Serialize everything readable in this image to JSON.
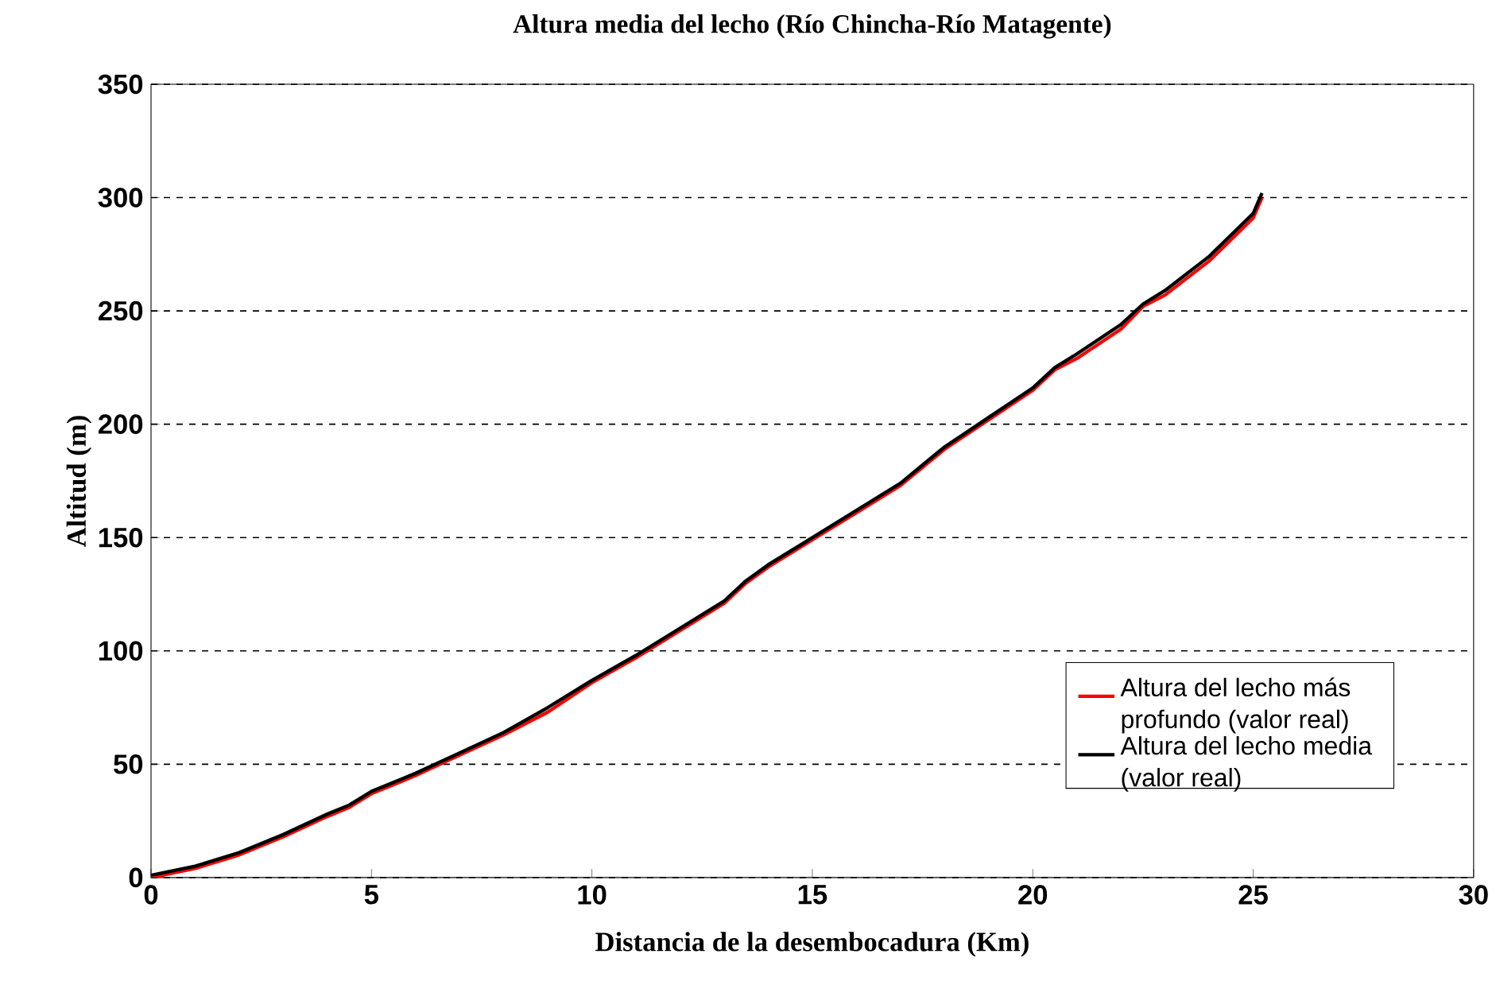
{
  "chart_data": {
    "type": "line",
    "title": "Altura media del lecho (Río Chincha-Río Matagente)",
    "xlabel": "Distancia de la desembocadura (Km)",
    "ylabel": "Altitud (m)",
    "xlim": [
      0,
      30
    ],
    "xticks": [
      0,
      5,
      10,
      15,
      20,
      25,
      30
    ],
    "ylim": [
      0,
      350
    ],
    "yticks": [
      0,
      50,
      100,
      150,
      200,
      250,
      300,
      350
    ],
    "grid": "y",
    "legend": "right",
    "marker": "none",
    "line_style": "solid",
    "x": [
      0,
      1,
      2,
      3,
      4,
      4.5,
      5,
      6,
      7,
      8,
      9,
      10,
      11,
      12,
      13,
      13.5,
      14,
      15,
      16,
      17,
      17.5,
      18,
      19,
      20,
      20.5,
      21,
      22,
      22.5,
      23,
      24,
      25,
      25.2
    ],
    "series": [
      {
        "name": "Altura del lecho más profundo (valor real)",
        "color": "#ff0000",
        "values": [
          0,
          4,
          10,
          18,
          27,
          31,
          37,
          45,
          54,
          63,
          73,
          86,
          97,
          109,
          121,
          130,
          137,
          149,
          161,
          173,
          181,
          189,
          202,
          215,
          224,
          229,
          242,
          252,
          257,
          272,
          291,
          300
        ]
      },
      {
        "name": "Altura del lecho media (valor real)",
        "color": "#000000",
        "values": [
          1,
          5,
          11,
          19,
          28,
          32,
          38,
          46,
          55,
          64,
          75,
          87,
          98,
          110,
          122,
          131,
          138,
          150,
          162,
          174,
          182,
          190,
          203,
          216,
          225,
          231,
          244,
          253,
          259,
          274,
          293,
          302
        ]
      }
    ]
  }
}
